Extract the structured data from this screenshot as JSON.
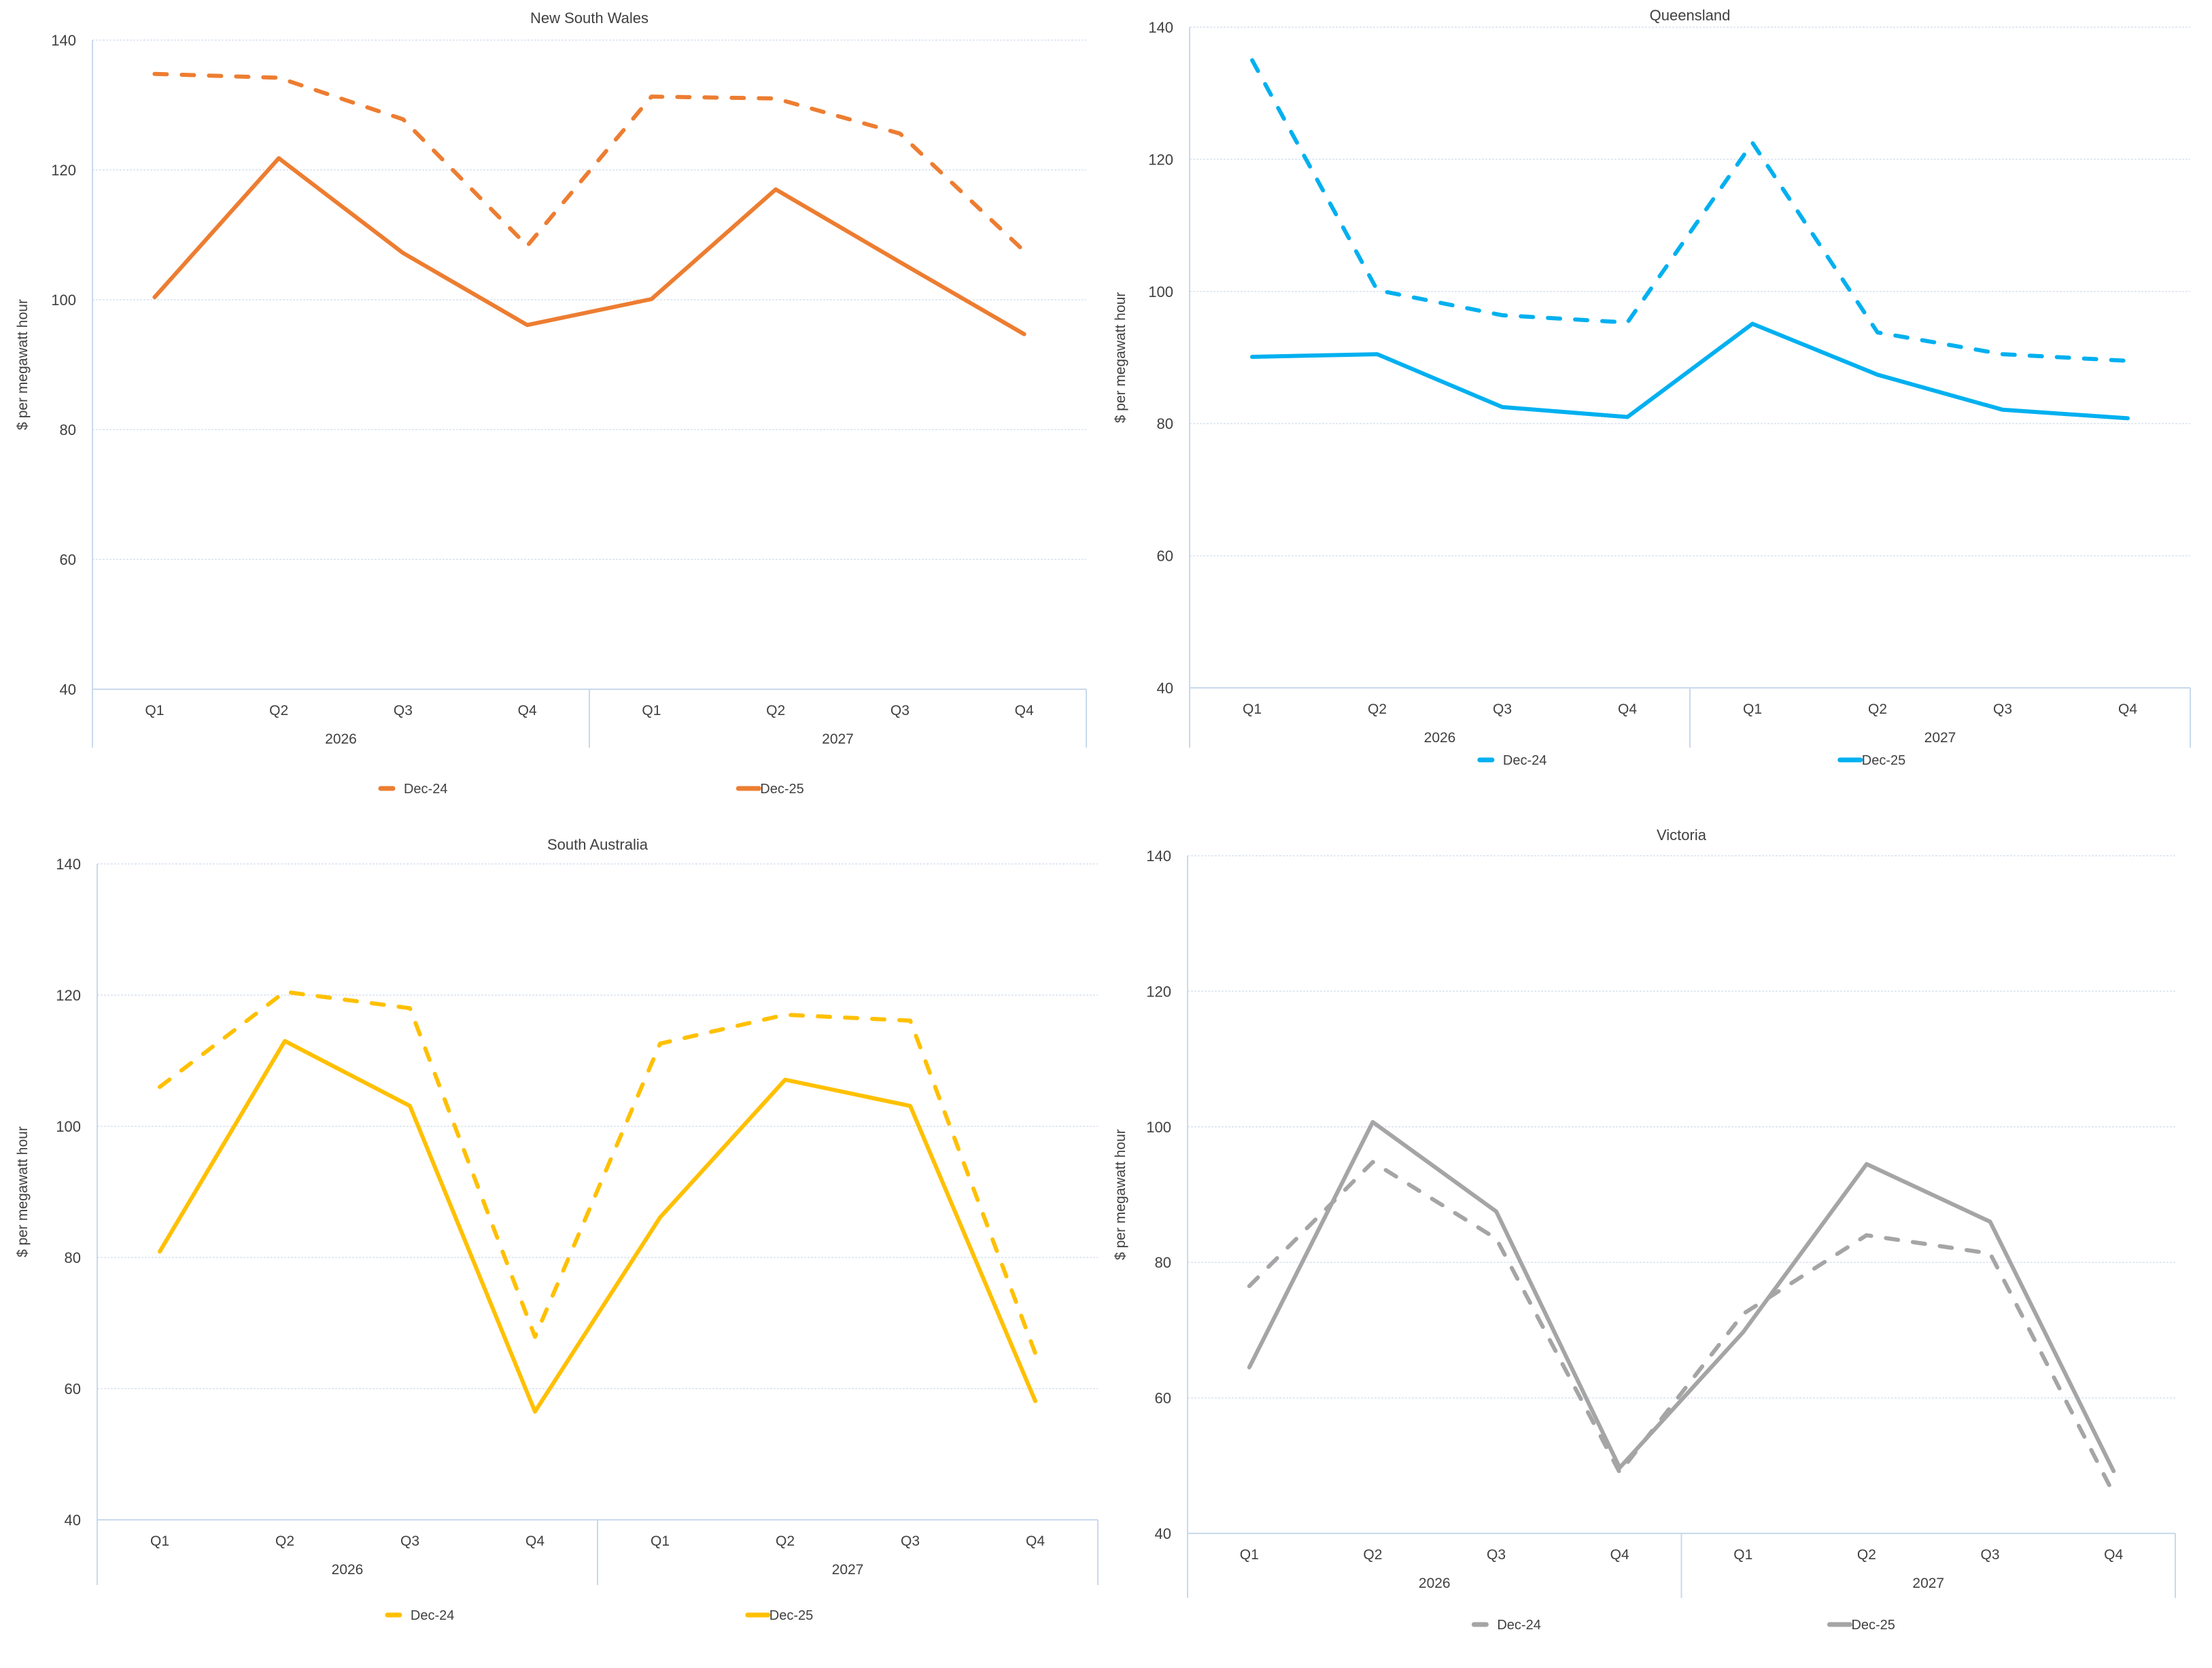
{
  "chart_data": [
    {
      "id": "nsw",
      "type": "line",
      "title": "New South Wales",
      "xlabel": "",
      "ylabel": "$ per megawatt hour",
      "ylim": [
        40,
        140
      ],
      "yticks": [
        40,
        60,
        80,
        100,
        120,
        140
      ],
      "grid": true,
      "legend_position": "bottom",
      "categories": [
        "Q1",
        "Q2",
        "Q3",
        "Q4",
        "Q1",
        "Q2",
        "Q3",
        "Q4"
      ],
      "category_groups": [
        {
          "label": "2026",
          "span": 4
        },
        {
          "label": "2027",
          "span": 4
        }
      ],
      "color": "#ED7D31",
      "series": [
        {
          "name": "Dec-24",
          "style": "dashed",
          "values": [
            134.8,
            134.2,
            127.8,
            108.3,
            131.3,
            131.0,
            125.6,
            107.5
          ]
        },
        {
          "name": "Dec-25",
          "style": "solid",
          "values": [
            100.4,
            121.8,
            107.2,
            96.1,
            100.1,
            117.0,
            105.8,
            94.7
          ]
        }
      ]
    },
    {
      "id": "qld",
      "type": "line",
      "title": "Queensland",
      "xlabel": "",
      "ylabel": "$ per megawatt hour",
      "ylim": [
        40,
        140
      ],
      "yticks": [
        40,
        60,
        80,
        100,
        120,
        140
      ],
      "grid": true,
      "legend_position": "bottom",
      "categories": [
        "Q1",
        "Q2",
        "Q3",
        "Q4",
        "Q1",
        "Q2",
        "Q3",
        "Q4"
      ],
      "category_groups": [
        {
          "label": "2026",
          "span": 4
        },
        {
          "label": "2027",
          "span": 4
        }
      ],
      "color": "#00B0F0",
      "series": [
        {
          "name": "Dec-24",
          "style": "dashed",
          "values": [
            135.0,
            100.2,
            96.4,
            95.3,
            122.5,
            93.8,
            90.5,
            89.5
          ]
        },
        {
          "name": "Dec-25",
          "style": "solid",
          "values": [
            90.1,
            90.5,
            82.5,
            81.0,
            95.1,
            87.4,
            82.1,
            80.8
          ]
        }
      ]
    },
    {
      "id": "sa",
      "type": "line",
      "title": "South Australia",
      "xlabel": "",
      "ylabel": "$ per megawatt hour",
      "ylim": [
        40,
        140
      ],
      "yticks": [
        40,
        60,
        80,
        100,
        120,
        140
      ],
      "grid": true,
      "legend_position": "bottom",
      "categories": [
        "Q1",
        "Q2",
        "Q3",
        "Q4",
        "Q1",
        "Q2",
        "Q3",
        "Q4"
      ],
      "category_groups": [
        {
          "label": "2026",
          "span": 4
        },
        {
          "label": "2027",
          "span": 4
        }
      ],
      "color": "#FFC000",
      "series": [
        {
          "name": "Dec-24",
          "style": "dashed",
          "values": [
            106.0,
            120.5,
            118.0,
            67.9,
            112.6,
            117.0,
            116.1,
            65.4
          ]
        },
        {
          "name": "Dec-25",
          "style": "solid",
          "values": [
            80.9,
            113.0,
            103.1,
            56.5,
            86.1,
            107.1,
            103.1,
            58.1
          ]
        }
      ]
    },
    {
      "id": "vic",
      "type": "line",
      "title": "Victoria",
      "xlabel": "",
      "ylabel": "$ per megawatt hour",
      "ylim": [
        40,
        140
      ],
      "yticks": [
        40,
        60,
        80,
        100,
        120,
        140
      ],
      "grid": true,
      "legend_position": "bottom",
      "categories": [
        "Q1",
        "Q2",
        "Q3",
        "Q4",
        "Q1",
        "Q2",
        "Q3",
        "Q4"
      ],
      "category_groups": [
        {
          "label": "2026",
          "span": 4
        },
        {
          "label": "2027",
          "span": 4
        }
      ],
      "color": "#A5A5A5",
      "series": [
        {
          "name": "Dec-24",
          "style": "dashed",
          "values": [
            76.5,
            94.8,
            83.5,
            49.0,
            72.4,
            84.0,
            81.3,
            45.9
          ]
        },
        {
          "name": "Dec-25",
          "style": "solid",
          "values": [
            64.5,
            100.7,
            87.5,
            49.7,
            69.7,
            94.5,
            86.0,
            49.2
          ]
        }
      ]
    }
  ],
  "colors": {
    "grid": "#D9E2F0",
    "axis": "#C9D9EC",
    "text": "#404040"
  }
}
